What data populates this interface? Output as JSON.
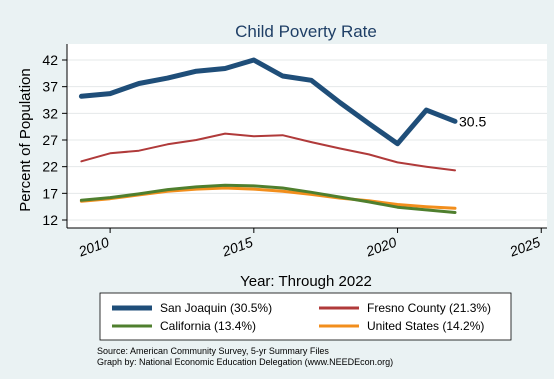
{
  "chart_data": {
    "type": "line",
    "title": "Child Poverty Rate",
    "xlabel": "Year: Through 2022",
    "ylabel": "Percent of Population",
    "x": [
      2009,
      2010,
      2011,
      2012,
      2013,
      2014,
      2015,
      2016,
      2017,
      2018,
      2019,
      2020,
      2021,
      2022
    ],
    "xlim": [
      2008.5,
      2025.2
    ],
    "ylim": [
      10.5,
      45
    ],
    "xticks": [
      "2010",
      "2015",
      "2020",
      "2025"
    ],
    "yticks": [
      "42",
      "37",
      "32",
      "27",
      "22",
      "17",
      "12"
    ],
    "grid": true,
    "series": [
      {
        "name": "San Joaquin (30.5%)",
        "color": "#1f4e79",
        "width": 5,
        "values": [
          35.2,
          35.7,
          37.6,
          38.6,
          39.9,
          40.4,
          42.0,
          39.0,
          38.2,
          34.0,
          30.1,
          26.3,
          32.6,
          30.5
        ]
      },
      {
        "name": "Fresno County (21.3%)",
        "color": "#b03a3a",
        "width": 2,
        "values": [
          23.0,
          24.5,
          25.0,
          26.2,
          27.0,
          28.2,
          27.7,
          27.9,
          26.6,
          25.4,
          24.3,
          22.8,
          22.0,
          21.3
        ]
      },
      {
        "name": "California (13.4%)",
        "color": "#4f7f2e",
        "width": 3,
        "values": [
          15.7,
          16.2,
          16.9,
          17.7,
          18.2,
          18.5,
          18.4,
          18.0,
          17.2,
          16.3,
          15.4,
          14.4,
          13.9,
          13.4
        ]
      },
      {
        "name": "United States (14.2%)",
        "color": "#f28e1c",
        "width": 3,
        "values": [
          15.5,
          16.0,
          16.7,
          17.4,
          17.8,
          18.0,
          17.8,
          17.4,
          16.8,
          16.1,
          15.6,
          14.9,
          14.5,
          14.2
        ]
      }
    ],
    "end_label": "30.5",
    "legend_position": "bottom"
  },
  "source": {
    "line1": "Source: American Community Survey, 5-yr Summary Files",
    "line2": "Graph by: National Economic Education Delegation (www.NEEDEcon.org)"
  }
}
